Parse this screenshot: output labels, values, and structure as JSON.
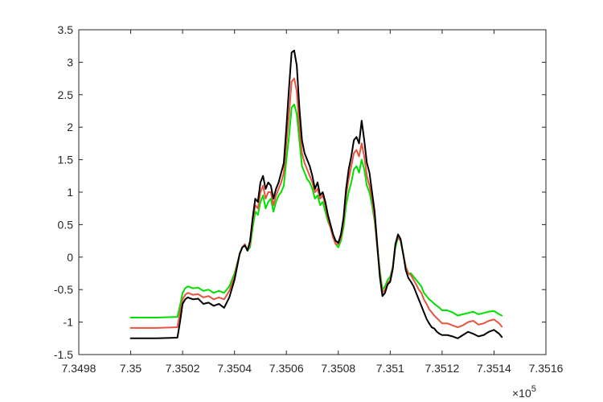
{
  "chart_data": {
    "type": "line",
    "title": "",
    "xlabel": "",
    "ylabel": "",
    "x_exponent_label": "×10",
    "x_exponent_power": "5",
    "xlim": [
      734980,
      735160
    ],
    "ylim": [
      -1.5,
      3.5
    ],
    "x_ticks": [
      734980,
      735000,
      735020,
      735040,
      735060,
      735080,
      735100,
      735120,
      735140,
      735160
    ],
    "x_tick_labels": [
      "7.3498",
      "7.35",
      "7.3502",
      "7.3504",
      "7.3506",
      "7.3508",
      "7.351",
      "7.3512",
      "7.3514",
      "7.3516"
    ],
    "y_ticks": [
      -1.5,
      -1,
      -0.5,
      0,
      0.5,
      1,
      1.5,
      2,
      2.5,
      3,
      3.5
    ],
    "y_tick_labels": [
      "-1.5",
      "-1",
      "-0.5",
      "0",
      "0.5",
      "1",
      "1.5",
      "2",
      "2.5",
      "3",
      "3.5"
    ],
    "grid": false,
    "legend": "none",
    "series": [
      {
        "color": "#00e000",
        "x": [
          735000,
          735010,
          735018,
          735019,
          735020,
          735021,
          735022,
          735024,
          735026,
          735028,
          735030,
          735032,
          735034,
          735036,
          735038,
          735040,
          735041,
          735042,
          735043,
          735044,
          735045,
          735046,
          735047,
          735048,
          735049,
          735050,
          735051,
          735052,
          735053,
          735054,
          735055,
          735056,
          735057,
          735058,
          735059,
          735060,
          735061,
          735062,
          735063,
          735064,
          735065,
          735066,
          735067,
          735068,
          735069,
          735070,
          735071,
          735072,
          735073,
          735074,
          735075,
          735076,
          735077,
          735078,
          735079,
          735080,
          735081,
          735082,
          735083,
          735084,
          735085,
          735086,
          735087,
          735088,
          735089,
          735090,
          735091,
          735092,
          735093,
          735094,
          735095,
          735096,
          735097,
          735098,
          735099,
          735100,
          735101,
          735102,
          735103,
          735104,
          735105,
          735106,
          735107,
          735108,
          735109,
          735110,
          735111,
          735112,
          735113,
          735114,
          735115,
          735116,
          735117,
          735118,
          735119,
          735120,
          735122,
          735124,
          735126,
          735128,
          735130,
          735132,
          735134,
          735136,
          735138,
          735140,
          735142,
          735143
        ],
        "y": [
          -0.93,
          -0.93,
          -0.92,
          -0.75,
          -0.55,
          -0.48,
          -0.45,
          -0.48,
          -0.47,
          -0.52,
          -0.5,
          -0.55,
          -0.52,
          -0.55,
          -0.45,
          -0.25,
          -0.1,
          0.05,
          0.15,
          0.18,
          0.1,
          0.15,
          0.45,
          0.7,
          0.65,
          0.85,
          0.95,
          0.75,
          0.85,
          0.9,
          0.7,
          0.85,
          0.95,
          1.0,
          1.1,
          1.5,
          1.85,
          2.3,
          2.35,
          2.2,
          1.8,
          1.4,
          1.3,
          1.2,
          1.15,
          1.05,
          0.9,
          0.95,
          0.8,
          0.85,
          0.7,
          0.55,
          0.45,
          0.3,
          0.2,
          0.15,
          0.25,
          0.45,
          0.8,
          1.0,
          1.15,
          1.35,
          1.4,
          1.3,
          1.5,
          1.35,
          1.1,
          1.0,
          0.8,
          0.55,
          0.15,
          -0.2,
          -0.5,
          -0.45,
          -0.35,
          -0.3,
          -0.15,
          0.15,
          0.3,
          0.25,
          0.05,
          -0.15,
          -0.25,
          -0.25,
          -0.3,
          -0.35,
          -0.4,
          -0.45,
          -0.55,
          -0.6,
          -0.65,
          -0.68,
          -0.72,
          -0.75,
          -0.78,
          -0.82,
          -0.82,
          -0.85,
          -0.9,
          -0.88,
          -0.86,
          -0.84,
          -0.88,
          -0.86,
          -0.84,
          -0.83,
          -0.88,
          -0.9
        ]
      },
      {
        "color": "#e8543f",
        "x": [
          735000,
          735010,
          735018,
          735019,
          735020,
          735021,
          735022,
          735024,
          735026,
          735028,
          735030,
          735032,
          735034,
          735036,
          735038,
          735040,
          735041,
          735042,
          735043,
          735044,
          735045,
          735046,
          735047,
          735048,
          735049,
          735050,
          735051,
          735052,
          735053,
          735054,
          735055,
          735056,
          735057,
          735058,
          735059,
          735060,
          735061,
          735062,
          735063,
          735064,
          735065,
          735066,
          735067,
          735068,
          735069,
          735070,
          735071,
          735072,
          735073,
          735074,
          735075,
          735076,
          735077,
          735078,
          735079,
          735080,
          735081,
          735082,
          735083,
          735084,
          735085,
          735086,
          735087,
          735088,
          735089,
          735090,
          735091,
          735092,
          735093,
          735094,
          735095,
          735096,
          735097,
          735098,
          735099,
          735100,
          735101,
          735102,
          735103,
          735104,
          735105,
          735106,
          735107,
          735108,
          735109,
          735110,
          735111,
          735112,
          735113,
          735114,
          735115,
          735116,
          735117,
          735118,
          735119,
          735120,
          735122,
          735124,
          735126,
          735128,
          735130,
          735132,
          735134,
          735136,
          735138,
          735140,
          735142,
          735143
        ],
        "y": [
          -1.09,
          -1.09,
          -1.08,
          -0.85,
          -0.65,
          -0.58,
          -0.55,
          -0.58,
          -0.57,
          -0.62,
          -0.6,
          -0.65,
          -0.62,
          -0.65,
          -0.52,
          -0.3,
          -0.12,
          0.05,
          0.15,
          0.2,
          0.1,
          0.2,
          0.55,
          0.8,
          0.75,
          1.0,
          1.1,
          0.9,
          1.0,
          1.0,
          0.8,
          0.95,
          1.05,
          1.15,
          1.3,
          1.75,
          2.2,
          2.7,
          2.75,
          2.55,
          2.0,
          1.6,
          1.45,
          1.35,
          1.25,
          1.15,
          1.0,
          1.05,
          0.9,
          0.95,
          0.8,
          0.6,
          0.45,
          0.3,
          0.2,
          0.2,
          0.3,
          0.55,
          0.95,
          1.2,
          1.4,
          1.6,
          1.65,
          1.55,
          1.75,
          1.55,
          1.25,
          1.1,
          0.9,
          0.6,
          0.15,
          -0.25,
          -0.55,
          -0.5,
          -0.4,
          -0.35,
          -0.15,
          0.2,
          0.32,
          0.25,
          0.05,
          -0.15,
          -0.25,
          -0.28,
          -0.35,
          -0.42,
          -0.5,
          -0.55,
          -0.65,
          -0.72,
          -0.8,
          -0.85,
          -0.9,
          -0.94,
          -0.98,
          -1.02,
          -1.02,
          -1.05,
          -1.08,
          -1.05,
          -1.0,
          -0.98,
          -1.04,
          -1.02,
          -0.98,
          -0.96,
          -1.02,
          -1.07
        ]
      },
      {
        "color": "#000000",
        "x": [
          735000,
          735010,
          735018,
          735019,
          735020,
          735021,
          735022,
          735024,
          735026,
          735028,
          735030,
          735032,
          735034,
          735036,
          735038,
          735040,
          735041,
          735042,
          735043,
          735044,
          735045,
          735046,
          735047,
          735048,
          735049,
          735050,
          735051,
          735052,
          735053,
          735054,
          735055,
          735056,
          735057,
          735058,
          735059,
          735060,
          735061,
          735062,
          735063,
          735064,
          735065,
          735066,
          735067,
          735068,
          735069,
          735070,
          735071,
          735072,
          735073,
          735074,
          735075,
          735076,
          735077,
          735078,
          735079,
          735080,
          735081,
          735082,
          735083,
          735084,
          735085,
          735086,
          735087,
          735088,
          735089,
          735090,
          735091,
          735092,
          735093,
          735094,
          735095,
          735096,
          735097,
          735098,
          735099,
          735100,
          735101,
          735102,
          735103,
          735104,
          735105,
          735106,
          735107,
          735108,
          735109,
          735110,
          735111,
          735112,
          735113,
          735114,
          735115,
          735116,
          735117,
          735118,
          735119,
          735120,
          735122,
          735124,
          735126,
          735128,
          735130,
          735132,
          735134,
          735136,
          735138,
          735140,
          735142,
          735143
        ],
        "y": [
          -1.25,
          -1.25,
          -1.24,
          -1.0,
          -0.72,
          -0.65,
          -0.62,
          -0.65,
          -0.64,
          -0.72,
          -0.7,
          -0.75,
          -0.72,
          -0.78,
          -0.62,
          -0.35,
          -0.15,
          0.05,
          0.15,
          0.18,
          0.1,
          0.25,
          0.6,
          0.9,
          0.85,
          1.15,
          1.25,
          1.05,
          1.15,
          1.1,
          0.9,
          1.05,
          1.15,
          1.3,
          1.45,
          2.0,
          2.6,
          3.15,
          3.18,
          2.95,
          2.3,
          1.8,
          1.6,
          1.5,
          1.4,
          1.25,
          1.05,
          1.15,
          0.95,
          1.0,
          0.85,
          0.65,
          0.5,
          0.35,
          0.25,
          0.22,
          0.35,
          0.6,
          1.05,
          1.35,
          1.55,
          1.8,
          1.85,
          1.75,
          2.1,
          1.8,
          1.45,
          1.3,
          1.0,
          0.7,
          0.2,
          -0.3,
          -0.6,
          -0.55,
          -0.42,
          -0.38,
          -0.18,
          0.2,
          0.35,
          0.28,
          0.05,
          -0.2,
          -0.32,
          -0.38,
          -0.45,
          -0.55,
          -0.65,
          -0.75,
          -0.85,
          -0.95,
          -1.02,
          -1.08,
          -1.1,
          -1.15,
          -1.18,
          -1.2,
          -1.2,
          -1.22,
          -1.25,
          -1.2,
          -1.15,
          -1.18,
          -1.22,
          -1.2,
          -1.15,
          -1.12,
          -1.18,
          -1.23
        ]
      }
    ]
  }
}
